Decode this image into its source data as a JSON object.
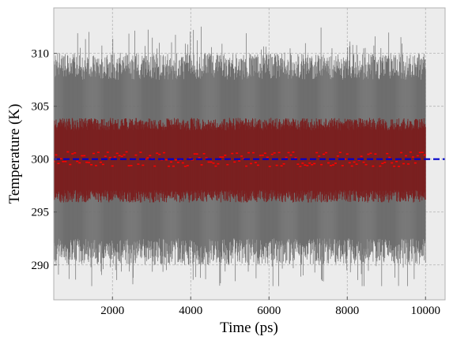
{
  "chart_data": {
    "type": "scatter",
    "title": "",
    "xlabel": "Time (ps)",
    "ylabel": "Temperature (K)",
    "xlim": [
      500,
      10500
    ],
    "ylim": [
      286.7,
      314.3
    ],
    "x_ticks": [
      2000,
      4000,
      6000,
      8000,
      10000
    ],
    "y_ticks": [
      290,
      295,
      300,
      305,
      310
    ],
    "grid": true,
    "legend": "none",
    "time_range": [
      500,
      10000
    ],
    "time_step": 10,
    "mean_temperature": 300.0,
    "std_band": [
      296.5,
      303.3
    ],
    "min_max_band": [
      292.5,
      307.5
    ],
    "extreme_min": 288.0,
    "extreme_max": 313.0,
    "reference_line": 300,
    "series": [
      {
        "kind": "min-max range",
        "color": "#6e6e6e"
      },
      {
        "kind": "standard deviation band",
        "color": "#7a2020"
      },
      {
        "kind": "mean",
        "color": "#ff0000"
      },
      {
        "kind": "reference",
        "color": "#0000cc"
      }
    ],
    "colors": {
      "background": "#ececec",
      "grid": "#b3b3b3",
      "frame": "#b0b0b0"
    }
  }
}
